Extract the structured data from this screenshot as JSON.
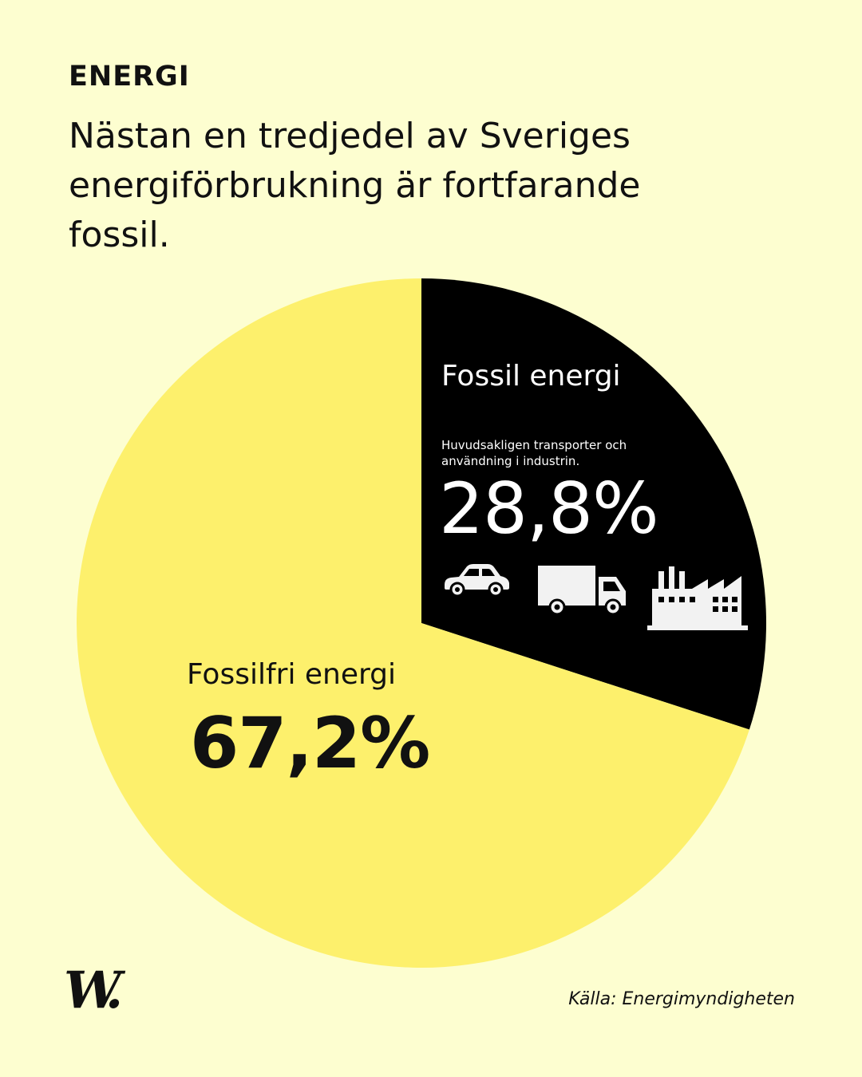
{
  "header": {
    "kicker": "ENERGI",
    "headline": "Nästan en tredjedel av Sveriges energiförbrukning är fortfarande fossil."
  },
  "chart_data": {
    "type": "pie",
    "title": "Nästan en tredjedel av Sveriges energiförbrukning är fortfarande fossil.",
    "slices": [
      {
        "name": "Fossil energi",
        "value": 28.8,
        "value_label": "28,8%",
        "description": "Huvudsakligen transporter och användning i industrin.",
        "color": "#000000"
      },
      {
        "name": "Fossilfri energi",
        "value": 67.2,
        "value_label": "67,2%",
        "color": "#fdf06c"
      }
    ]
  },
  "icons": [
    "car-icon",
    "truck-icon",
    "factory-icon"
  ],
  "colors": {
    "background": "#fdfed0",
    "fossil": "#000000",
    "fossilfree": "#fdf06c"
  },
  "footer": {
    "logo": "W.",
    "source": "Källa: Energimyndigheten"
  }
}
